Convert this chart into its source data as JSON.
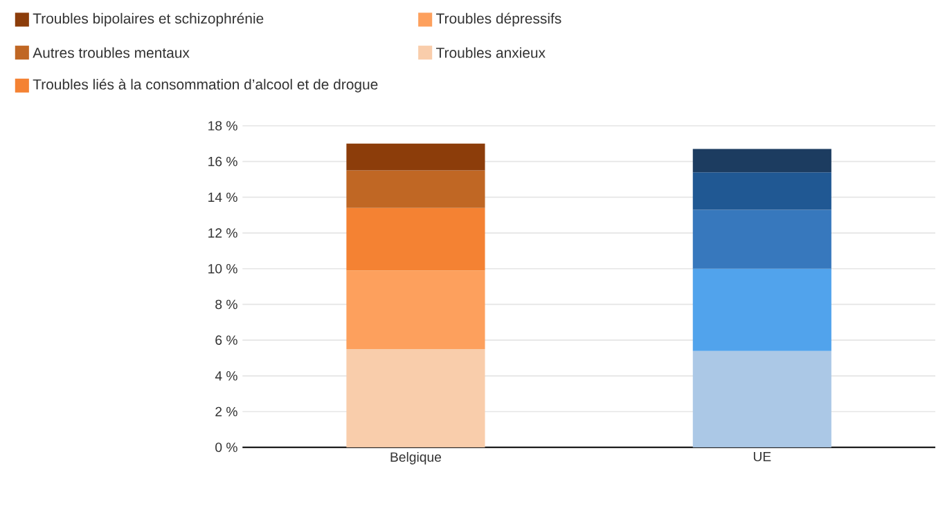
{
  "chart_data": {
    "type": "bar",
    "stacked": true,
    "categories": [
      "Belgique",
      "UE"
    ],
    "series": [
      {
        "name": "Troubles anxieux",
        "color": "#f9cdab",
        "colors": [
          "#f9cdab",
          "#abc8e6"
        ],
        "values": [
          5.5,
          5.4
        ]
      },
      {
        "name": "Troubles dépressifs",
        "color": "#fda05d",
        "colors": [
          "#fda05d",
          "#51a3ec"
        ],
        "values": [
          4.4,
          4.6
        ]
      },
      {
        "name": "Troubles liés à la consommation d’alcool et de drogue",
        "color": "#f48233",
        "colors": [
          "#f48233",
          "#3778bd"
        ],
        "values": [
          3.5,
          3.3
        ]
      },
      {
        "name": "Autres troubles mentaux",
        "color": "#c06724",
        "colors": [
          "#c06724",
          "#205893"
        ],
        "values": [
          2.1,
          2.1
        ]
      },
      {
        "name": "Troubles bipolaires et schizophrénie",
        "color": "#8c3d0a",
        "colors": [
          "#8c3d0a",
          "#1c3c60"
        ],
        "values": [
          1.5,
          1.3
        ]
      }
    ],
    "ylim": [
      0,
      18
    ],
    "yticks": [
      {
        "value": 0,
        "label": "0 %"
      },
      {
        "value": 2,
        "label": "2 %"
      },
      {
        "value": 4,
        "label": "4 %"
      },
      {
        "value": 6,
        "label": "6 %"
      },
      {
        "value": 8,
        "label": "8 %"
      },
      {
        "value": 10,
        "label": "10 %"
      },
      {
        "value": 12,
        "label": "12 %"
      },
      {
        "value": 14,
        "label": "14 %"
      },
      {
        "value": 16,
        "label": "16 %"
      },
      {
        "value": 18,
        "label": "18 %"
      }
    ],
    "grid": "y",
    "legend": "top"
  }
}
